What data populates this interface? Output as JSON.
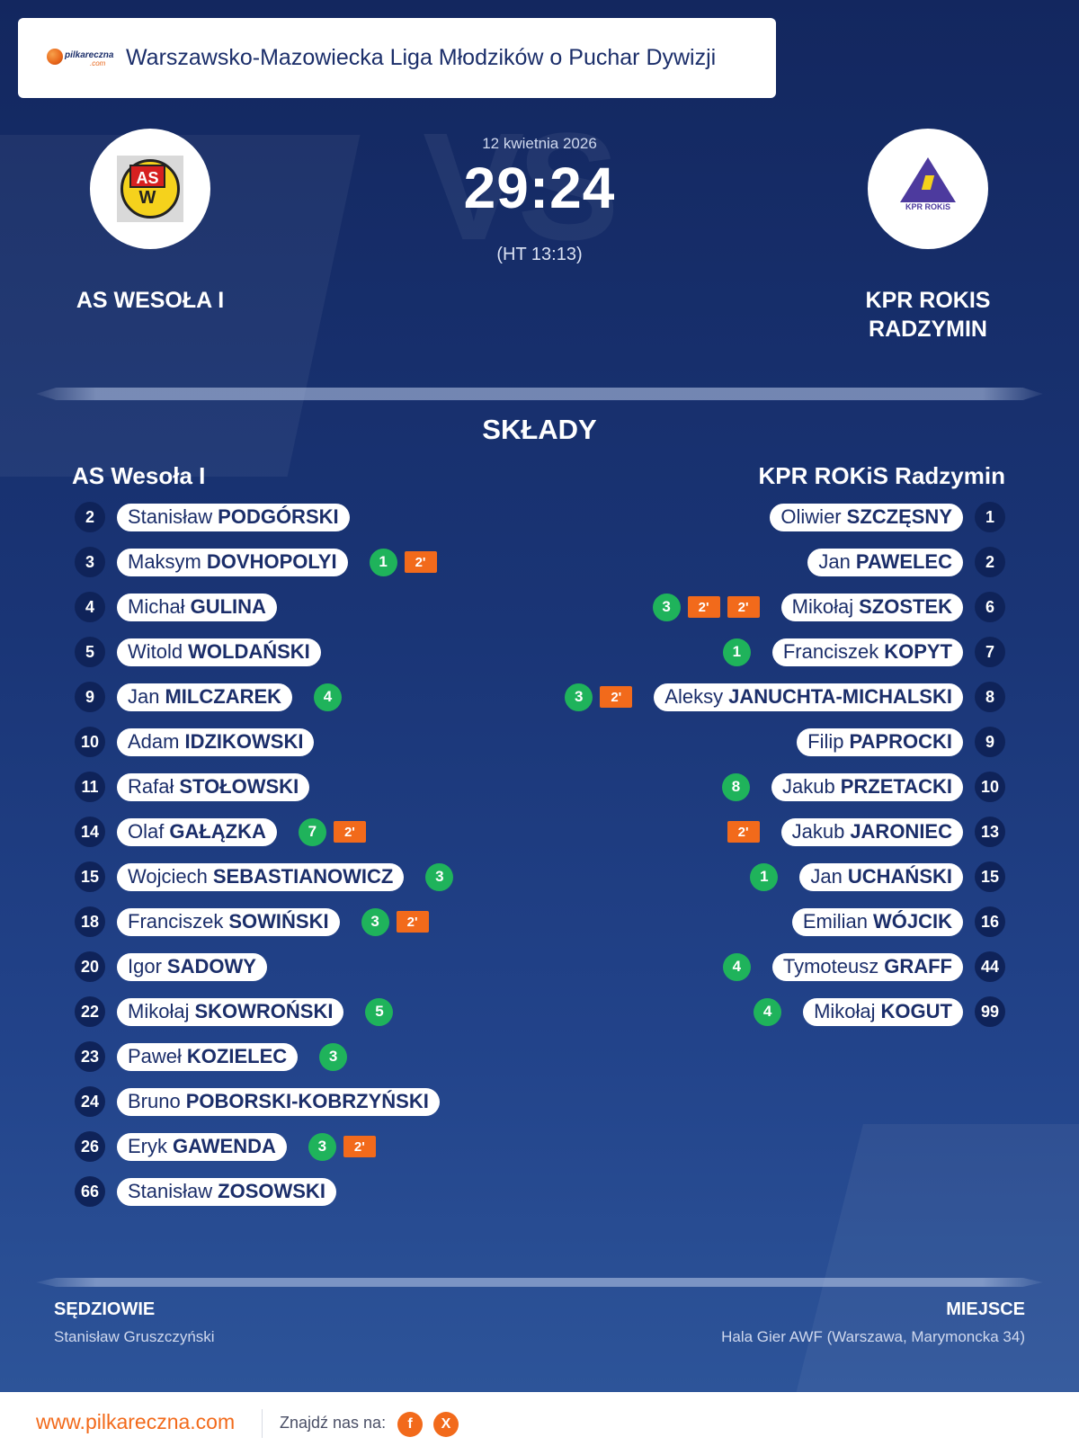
{
  "header": {
    "brand_name": "pilkareczna",
    "brand_tld": ".com",
    "league": "Warszawsko-Mazowiecka Liga Młodzików o Puchar Dywizji"
  },
  "match": {
    "date": "12 kwietnia 2026",
    "score": "29:24",
    "halftime": "(HT 13:13)",
    "watermark": "VS",
    "home_name": "AS WESOŁA I",
    "away_name": "KPR ROKIS RADZYMIN",
    "away_logo_text": "KPR ROKiS",
    "home_logo_text_top": "AS",
    "home_logo_text_bottom": "W"
  },
  "lineups": {
    "title": "SKŁADY",
    "home_title": "AS Wesoła I",
    "away_title": "KPR ROKiS Radzymin",
    "home": [
      {
        "num": "2",
        "first": "Stanisław",
        "last": "PODGÓRSKI",
        "goals": "",
        "pens": []
      },
      {
        "num": "3",
        "first": "Maksym",
        "last": "DOVHOPOLYI",
        "goals": "1",
        "pens": [
          "2'"
        ]
      },
      {
        "num": "4",
        "first": "Michał",
        "last": "GULINA",
        "goals": "",
        "pens": []
      },
      {
        "num": "5",
        "first": "Witold",
        "last": "WOLDAŃSKI",
        "goals": "",
        "pens": []
      },
      {
        "num": "9",
        "first": "Jan",
        "last": "MILCZAREK",
        "goals": "4",
        "pens": []
      },
      {
        "num": "10",
        "first": "Adam",
        "last": "IDZIKOWSKI",
        "goals": "",
        "pens": []
      },
      {
        "num": "11",
        "first": "Rafał",
        "last": "STOŁOWSKI",
        "goals": "",
        "pens": []
      },
      {
        "num": "14",
        "first": "Olaf",
        "last": "GAŁĄZKA",
        "goals": "7",
        "pens": [
          "2'"
        ]
      },
      {
        "num": "15",
        "first": "Wojciech",
        "last": "SEBASTIANOWICZ",
        "goals": "3",
        "pens": []
      },
      {
        "num": "18",
        "first": "Franciszek",
        "last": "SOWIŃSKI",
        "goals": "3",
        "pens": [
          "2'"
        ]
      },
      {
        "num": "20",
        "first": "Igor",
        "last": "SADOWY",
        "goals": "",
        "pens": []
      },
      {
        "num": "22",
        "first": "Mikołaj",
        "last": "SKOWROŃSKI",
        "goals": "5",
        "pens": []
      },
      {
        "num": "23",
        "first": "Paweł",
        "last": "KOZIELEC",
        "goals": "3",
        "pens": []
      },
      {
        "num": "24",
        "first": "Bruno",
        "last": "POBORSKI-KOBRZYŃSKI",
        "goals": "",
        "pens": []
      },
      {
        "num": "26",
        "first": "Eryk",
        "last": "GAWENDA",
        "goals": "3",
        "pens": [
          "2'"
        ]
      },
      {
        "num": "66",
        "first": "Stanisław",
        "last": "ZOSOWSKI",
        "goals": "",
        "pens": []
      }
    ],
    "away": [
      {
        "num": "1",
        "first": "Oliwier",
        "last": "SZCZĘSNY",
        "goals": "",
        "pens": []
      },
      {
        "num": "2",
        "first": "Jan",
        "last": "PAWELEC",
        "goals": "",
        "pens": []
      },
      {
        "num": "6",
        "first": "Mikołaj",
        "last": "SZOSTEK",
        "goals": "3",
        "pens": [
          "2'",
          "2'"
        ]
      },
      {
        "num": "7",
        "first": "Franciszek",
        "last": "KOPYT",
        "goals": "1",
        "pens": []
      },
      {
        "num": "8",
        "first": "Aleksy",
        "last": "JANUCHTA-MICHALSKI",
        "goals": "3",
        "pens": [
          "2'"
        ]
      },
      {
        "num": "9",
        "first": "Filip",
        "last": "PAPROCKI",
        "goals": "",
        "pens": []
      },
      {
        "num": "10",
        "first": "Jakub",
        "last": "PRZETACKI",
        "goals": "8",
        "pens": []
      },
      {
        "num": "13",
        "first": "Jakub",
        "last": "JARONIEC",
        "goals": "",
        "pens": [
          "2'"
        ]
      },
      {
        "num": "15",
        "first": "Jan",
        "last": "UCHAŃSKI",
        "goals": "1",
        "pens": []
      },
      {
        "num": "16",
        "first": "Emilian",
        "last": "WÓJCIK",
        "goals": "",
        "pens": []
      },
      {
        "num": "44",
        "first": "Tymoteusz",
        "last": "GRAFF",
        "goals": "4",
        "pens": []
      },
      {
        "num": "99",
        "first": "Mikołaj",
        "last": "KOGUT",
        "goals": "4",
        "pens": []
      }
    ]
  },
  "info": {
    "referees_label": "SĘDZIOWIE",
    "referees_value": "Stanisław Gruszczyński",
    "venue_label": "MIEJSCE",
    "venue_value": "Hala Gier AWF (Warszawa, Marymoncka 34)"
  },
  "footer": {
    "site": "www.pilkareczna.com",
    "find_us": "Znajdź nas na:",
    "facebook_glyph": "f",
    "x_glyph": "X"
  },
  "colors": {
    "goal": "#1fb35b",
    "penalty": "#f26a1b",
    "navy": "#13275f",
    "accent": "#f26a1b"
  }
}
